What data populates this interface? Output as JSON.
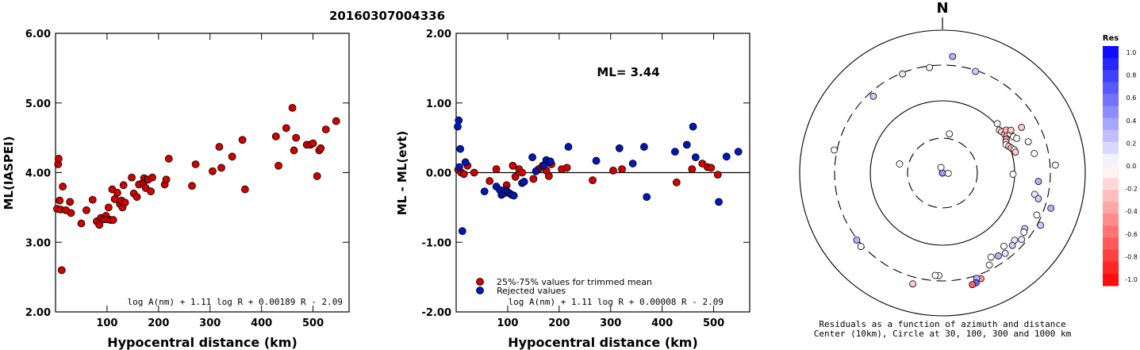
{
  "event_id": "20160307004336",
  "colors": {
    "red": "#d00000",
    "blue": "#0018b8",
    "frame": "#000000"
  },
  "chart_data": [
    {
      "type": "scatter",
      "xlabel": "Hypocentral distance (km)",
      "ylabel": "ML(IASPEI)",
      "xlim": [
        0,
        570
      ],
      "ylim": [
        2.0,
        6.0
      ],
      "x_ticks": [
        100,
        200,
        300,
        400,
        500
      ],
      "y_ticks": [
        "2.00",
        "3.00",
        "4.00",
        "5.00",
        "6.00"
      ],
      "formula": "log A(nm) + 1.11 log R + 0.00189 R - 2.09",
      "series": [
        {
          "color": "red",
          "points": [
            [
              3,
              3.48
            ],
            [
              5,
              4.12
            ],
            [
              6,
              4.2
            ],
            [
              8,
              3.6
            ],
            [
              10,
              3.47
            ],
            [
              12,
              2.6
            ],
            [
              14,
              3.8
            ],
            [
              20,
              3.46
            ],
            [
              28,
              3.58
            ],
            [
              30,
              3.42
            ],
            [
              50,
              3.27
            ],
            [
              60,
              3.46
            ],
            [
              72,
              3.61
            ],
            [
              80,
              3.3
            ],
            [
              85,
              3.25
            ],
            [
              88,
              3.35
            ],
            [
              93,
              3.33
            ],
            [
              98,
              3.38
            ],
            [
              100,
              3.33
            ],
            [
              103,
              3.5
            ],
            [
              107,
              3.32
            ],
            [
              110,
              3.76
            ],
            [
              112,
              3.32
            ],
            [
              115,
              3.62
            ],
            [
              120,
              3.71
            ],
            [
              125,
              3.55
            ],
            [
              128,
              3.6
            ],
            [
              130,
              3.5
            ],
            [
              132,
              3.82
            ],
            [
              135,
              3.57
            ],
            [
              148,
              3.93
            ],
            [
              152,
              3.7
            ],
            [
              158,
              3.65
            ],
            [
              162,
              3.83
            ],
            [
              170,
              3.85
            ],
            [
              172,
              3.92
            ],
            [
              175,
              3.78
            ],
            [
              178,
              3.9
            ],
            [
              180,
              3.9
            ],
            [
              185,
              3.73
            ],
            [
              188,
              3.93
            ],
            [
              212,
              3.83
            ],
            [
              215,
              3.9
            ],
            [
              220,
              4.2
            ],
            [
              265,
              3.81
            ],
            [
              272,
              4.12
            ],
            [
              305,
              4.02
            ],
            [
              318,
              4.37
            ],
            [
              322,
              4.07
            ],
            [
              343,
              4.23
            ],
            [
              363,
              4.47
            ],
            [
              368,
              3.76
            ],
            [
              428,
              4.52
            ],
            [
              433,
              4.1
            ],
            [
              448,
              4.64
            ],
            [
              460,
              4.93
            ],
            [
              463,
              4.32
            ],
            [
              467,
              4.5
            ],
            [
              488,
              4.4
            ],
            [
              495,
              4.4
            ],
            [
              500,
              4.42
            ],
            [
              508,
              3.95
            ],
            [
              512,
              4.32
            ],
            [
              515,
              4.35
            ],
            [
              525,
              4.62
            ],
            [
              545,
              4.74
            ]
          ]
        }
      ]
    },
    {
      "type": "scatter",
      "xlabel": "Hypocentral distance (km)",
      "ylabel": "ML - ML(evt)",
      "xlim": [
        0,
        570
      ],
      "ylim": [
        -2.0,
        2.0
      ],
      "x_ticks": [
        100,
        200,
        300,
        400,
        500
      ],
      "y_ticks": [
        "-2.00",
        "-1.00",
        "0.00",
        "1.00",
        "2.00"
      ],
      "annotation": "ML= 3.44",
      "formula": "log A(nm) + 1.11 log R + 0.00008 R - 2.09",
      "legend": [
        {
          "label": "25%-75% values for trimmed mean",
          "color": "red"
        },
        {
          "label": "Rejected values",
          "color": "blue"
        }
      ],
      "series": [
        {
          "color": "red",
          "points": [
            [
              4,
              0.04
            ],
            [
              10,
              0.0
            ],
            [
              15,
              -0.02
            ],
            [
              22,
              0.1
            ],
            [
              35,
              0.0
            ],
            [
              65,
              -0.12
            ],
            [
              78,
              0.05
            ],
            [
              98,
              -0.18
            ],
            [
              110,
              0.1
            ],
            [
              115,
              -0.06
            ],
            [
              122,
              0.05
            ],
            [
              128,
              0.0
            ],
            [
              150,
              -0.09
            ],
            [
              160,
              0.05
            ],
            [
              168,
              0.1
            ],
            [
              175,
              0.03
            ],
            [
              180,
              -0.05
            ],
            [
              185,
              0.12
            ],
            [
              205,
              0.05
            ],
            [
              215,
              0.07
            ],
            [
              265,
              -0.11
            ],
            [
              305,
              0.03
            ],
            [
              322,
              0.05
            ],
            [
              428,
              -0.14
            ],
            [
              458,
              0.05
            ],
            [
              478,
              0.13
            ],
            [
              488,
              0.08
            ],
            [
              495,
              0.07
            ],
            [
              508,
              -0.03
            ]
          ]
        },
        {
          "color": "blue",
          "points": [
            [
              3,
              0.66
            ],
            [
              5,
              0.75
            ],
            [
              6,
              0.08
            ],
            [
              8,
              0.34
            ],
            [
              12,
              -0.84
            ],
            [
              18,
              0.15
            ],
            [
              55,
              -0.27
            ],
            [
              78,
              -0.2
            ],
            [
              85,
              -0.25
            ],
            [
              88,
              -0.32
            ],
            [
              92,
              -0.3
            ],
            [
              96,
              -0.25
            ],
            [
              100,
              -0.28
            ],
            [
              104,
              -0.3
            ],
            [
              108,
              -0.32
            ],
            [
              112,
              -0.33
            ],
            [
              128,
              -0.15
            ],
            [
              132,
              -0.13
            ],
            [
              148,
              0.22
            ],
            [
              155,
              0.02
            ],
            [
              170,
              0.1
            ],
            [
              175,
              0.18
            ],
            [
              180,
              0.15
            ],
            [
              183,
              0.16
            ],
            [
              218,
              0.37
            ],
            [
              272,
              0.17
            ],
            [
              317,
              0.35
            ],
            [
              343,
              0.13
            ],
            [
              365,
              0.37
            ],
            [
              370,
              -0.35
            ],
            [
              425,
              0.3
            ],
            [
              448,
              0.4
            ],
            [
              460,
              0.66
            ],
            [
              465,
              0.22
            ],
            [
              510,
              -0.42
            ],
            [
              525,
              0.23
            ],
            [
              548,
              0.3
            ]
          ]
        }
      ]
    },
    {
      "type": "scatter",
      "subtype": "polar",
      "north_label": "N",
      "caption_line1": "Residuals as a function of azimuth and distance",
      "caption_line2": "Center (10km), Circle at 30, 100, 300 and 1000 km",
      "colorbar": {
        "title": "Res",
        "ticks": [
          "1.0",
          "0.8",
          "0.6",
          "0.4",
          "0.2",
          "0.0",
          "-0.2",
          "-0.4",
          "-0.6",
          "-0.8",
          "-1.0"
        ]
      },
      "points": [
        {
          "az": 0,
          "dist": 0,
          "res": 0.0
        },
        {
          "az": 50,
          "dist": 3,
          "res": 0.0
        },
        {
          "az": 275,
          "dist": 4,
          "res": 0.4
        },
        {
          "az": 93,
          "dist": 12,
          "res": 0.0
        },
        {
          "az": 345,
          "dist": 12,
          "res": 0.0
        },
        {
          "az": 10,
          "dist": 35,
          "res": 0.0
        },
        {
          "az": 282,
          "dist": 40,
          "res": 0.0
        },
        {
          "az": 53,
          "dist": 97,
          "res": -0.1
        },
        {
          "az": 55,
          "dist": 100,
          "res": -0.2
        },
        {
          "az": 58,
          "dist": 103,
          "res": -0.3
        },
        {
          "az": 60,
          "dist": 108,
          "res": -0.2
        },
        {
          "az": 62,
          "dist": 100,
          "res": -0.4
        },
        {
          "az": 64,
          "dist": 95,
          "res": -0.1
        },
        {
          "az": 66,
          "dist": 92,
          "res": 0.0
        },
        {
          "az": 68,
          "dist": 98,
          "res": -0.2
        },
        {
          "az": 70,
          "dist": 103,
          "res": -0.3
        },
        {
          "az": 72,
          "dist": 110,
          "res": 0.0
        },
        {
          "az": 74,
          "dist": 112,
          "res": -0.2
        },
        {
          "az": 56,
          "dist": 115,
          "res": -0.3
        },
        {
          "az": 60,
          "dist": 120,
          "res": -0.1
        },
        {
          "az": 63,
          "dist": 126,
          "res": 0.0
        },
        {
          "az": 58,
          "dist": 130,
          "res": -0.2
        },
        {
          "az": 65,
          "dist": 135,
          "res": 0.0
        },
        {
          "az": 91,
          "dist": 95,
          "res": 0.0
        },
        {
          "az": 70,
          "dist": 180,
          "res": 0.0
        },
        {
          "az": 95,
          "dist": 210,
          "res": 0.3
        },
        {
          "az": 103,
          "dist": 200,
          "res": 0.1
        },
        {
          "az": 105,
          "dist": 230,
          "res": 0.2
        },
        {
          "az": 108,
          "dist": 370,
          "res": 0.3
        },
        {
          "az": 114,
          "dist": 260,
          "res": 0.0
        },
        {
          "az": 118,
          "dist": 335,
          "res": 0.2
        },
        {
          "az": 124,
          "dist": 230,
          "res": 0.2
        },
        {
          "az": 126,
          "dist": 240,
          "res": 0.0
        },
        {
          "az": 130,
          "dist": 260,
          "res": 0.1
        },
        {
          "az": 133,
          "dist": 225,
          "res": 0.1
        },
        {
          "az": 136,
          "dist": 240,
          "res": 0.2
        },
        {
          "az": 140,
          "dist": 205,
          "res": 0.0
        },
        {
          "az": 142,
          "dist": 250,
          "res": 0.1
        },
        {
          "az": 146,
          "dist": 235,
          "res": 0.3
        },
        {
          "az": 150,
          "dist": 215,
          "res": 0.0
        },
        {
          "az": 153,
          "dist": 260,
          "res": 0.0
        },
        {
          "az": 160,
          "dist": 350,
          "res": -0.4
        },
        {
          "az": 162,
          "dist": 330,
          "res": 0.3
        },
        {
          "az": 163,
          "dist": 380,
          "res": 0.6
        },
        {
          "az": 165,
          "dist": 390,
          "res": -0.6
        },
        {
          "az": 182,
          "dist": 255,
          "res": 0.0
        },
        {
          "az": 184,
          "dist": 255,
          "res": 0.0
        },
        {
          "az": 195,
          "dist": 380,
          "res": -0.2
        },
        {
          "az": 228,
          "dist": 320,
          "res": 0.0
        },
        {
          "az": 232,
          "dist": 310,
          "res": 0.3
        },
        {
          "az": 282,
          "dist": 330,
          "res": 0.0
        },
        {
          "az": 318,
          "dist": 260,
          "res": 0.2
        },
        {
          "az": 338,
          "dist": 290,
          "res": 0.1
        },
        {
          "az": 353,
          "dist": 285,
          "res": 0.0
        },
        {
          "az": 18,
          "dist": 290,
          "res": 0.2
        },
        {
          "az": 5,
          "dist": 410,
          "res": 0.3
        },
        {
          "az": 60,
          "dist": 180,
          "res": -0.2
        },
        {
          "az": 48,
          "dist": 105,
          "res": 0.0
        },
        {
          "az": 86,
          "dist": 360,
          "res": 0.0
        },
        {
          "az": 78,
          "dist": 195,
          "res": 0.0
        }
      ]
    }
  ]
}
